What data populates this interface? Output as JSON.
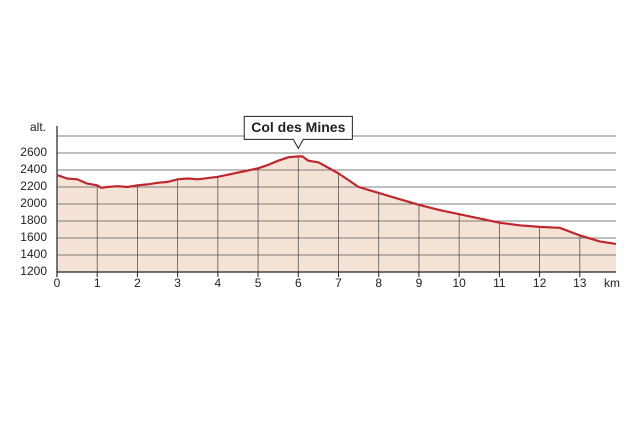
{
  "chart_data": {
    "type": "area",
    "y_label": "alt.",
    "x_label": "km",
    "annotation": {
      "text": "Col des Mines",
      "x": 6,
      "y": 2560
    },
    "x": [
      0,
      0.25,
      0.5,
      0.75,
      1,
      1.1,
      1.25,
      1.5,
      1.75,
      2,
      2.25,
      2.5,
      2.75,
      3,
      3.25,
      3.5,
      4,
      4.5,
      5,
      5.25,
      5.5,
      5.75,
      6,
      6.1,
      6.25,
      6.5,
      7,
      7.5,
      8,
      8.5,
      9,
      9.5,
      10,
      10.5,
      11,
      11.5,
      12,
      12.5,
      13,
      13.5,
      13.9
    ],
    "values": [
      2340,
      2300,
      2290,
      2240,
      2220,
      2190,
      2200,
      2210,
      2200,
      2220,
      2230,
      2250,
      2260,
      2290,
      2300,
      2290,
      2320,
      2370,
      2420,
      2460,
      2510,
      2550,
      2560,
      2560,
      2510,
      2490,
      2360,
      2200,
      2130,
      2060,
      1990,
      1930,
      1880,
      1830,
      1780,
      1750,
      1730,
      1720,
      1630,
      1560,
      1530
    ],
    "color": "#c0272d",
    "fill": "#f6e3d8",
    "xlim": [
      0,
      13.9
    ],
    "ylim": [
      1200,
      2800
    ],
    "xticks": [
      0,
      1,
      2,
      3,
      4,
      5,
      6,
      7,
      8,
      9,
      10,
      11,
      12,
      13
    ],
    "yticks": [
      1200,
      1400,
      1600,
      1800,
      2000,
      2200,
      2400,
      2600
    ],
    "grid": true
  }
}
